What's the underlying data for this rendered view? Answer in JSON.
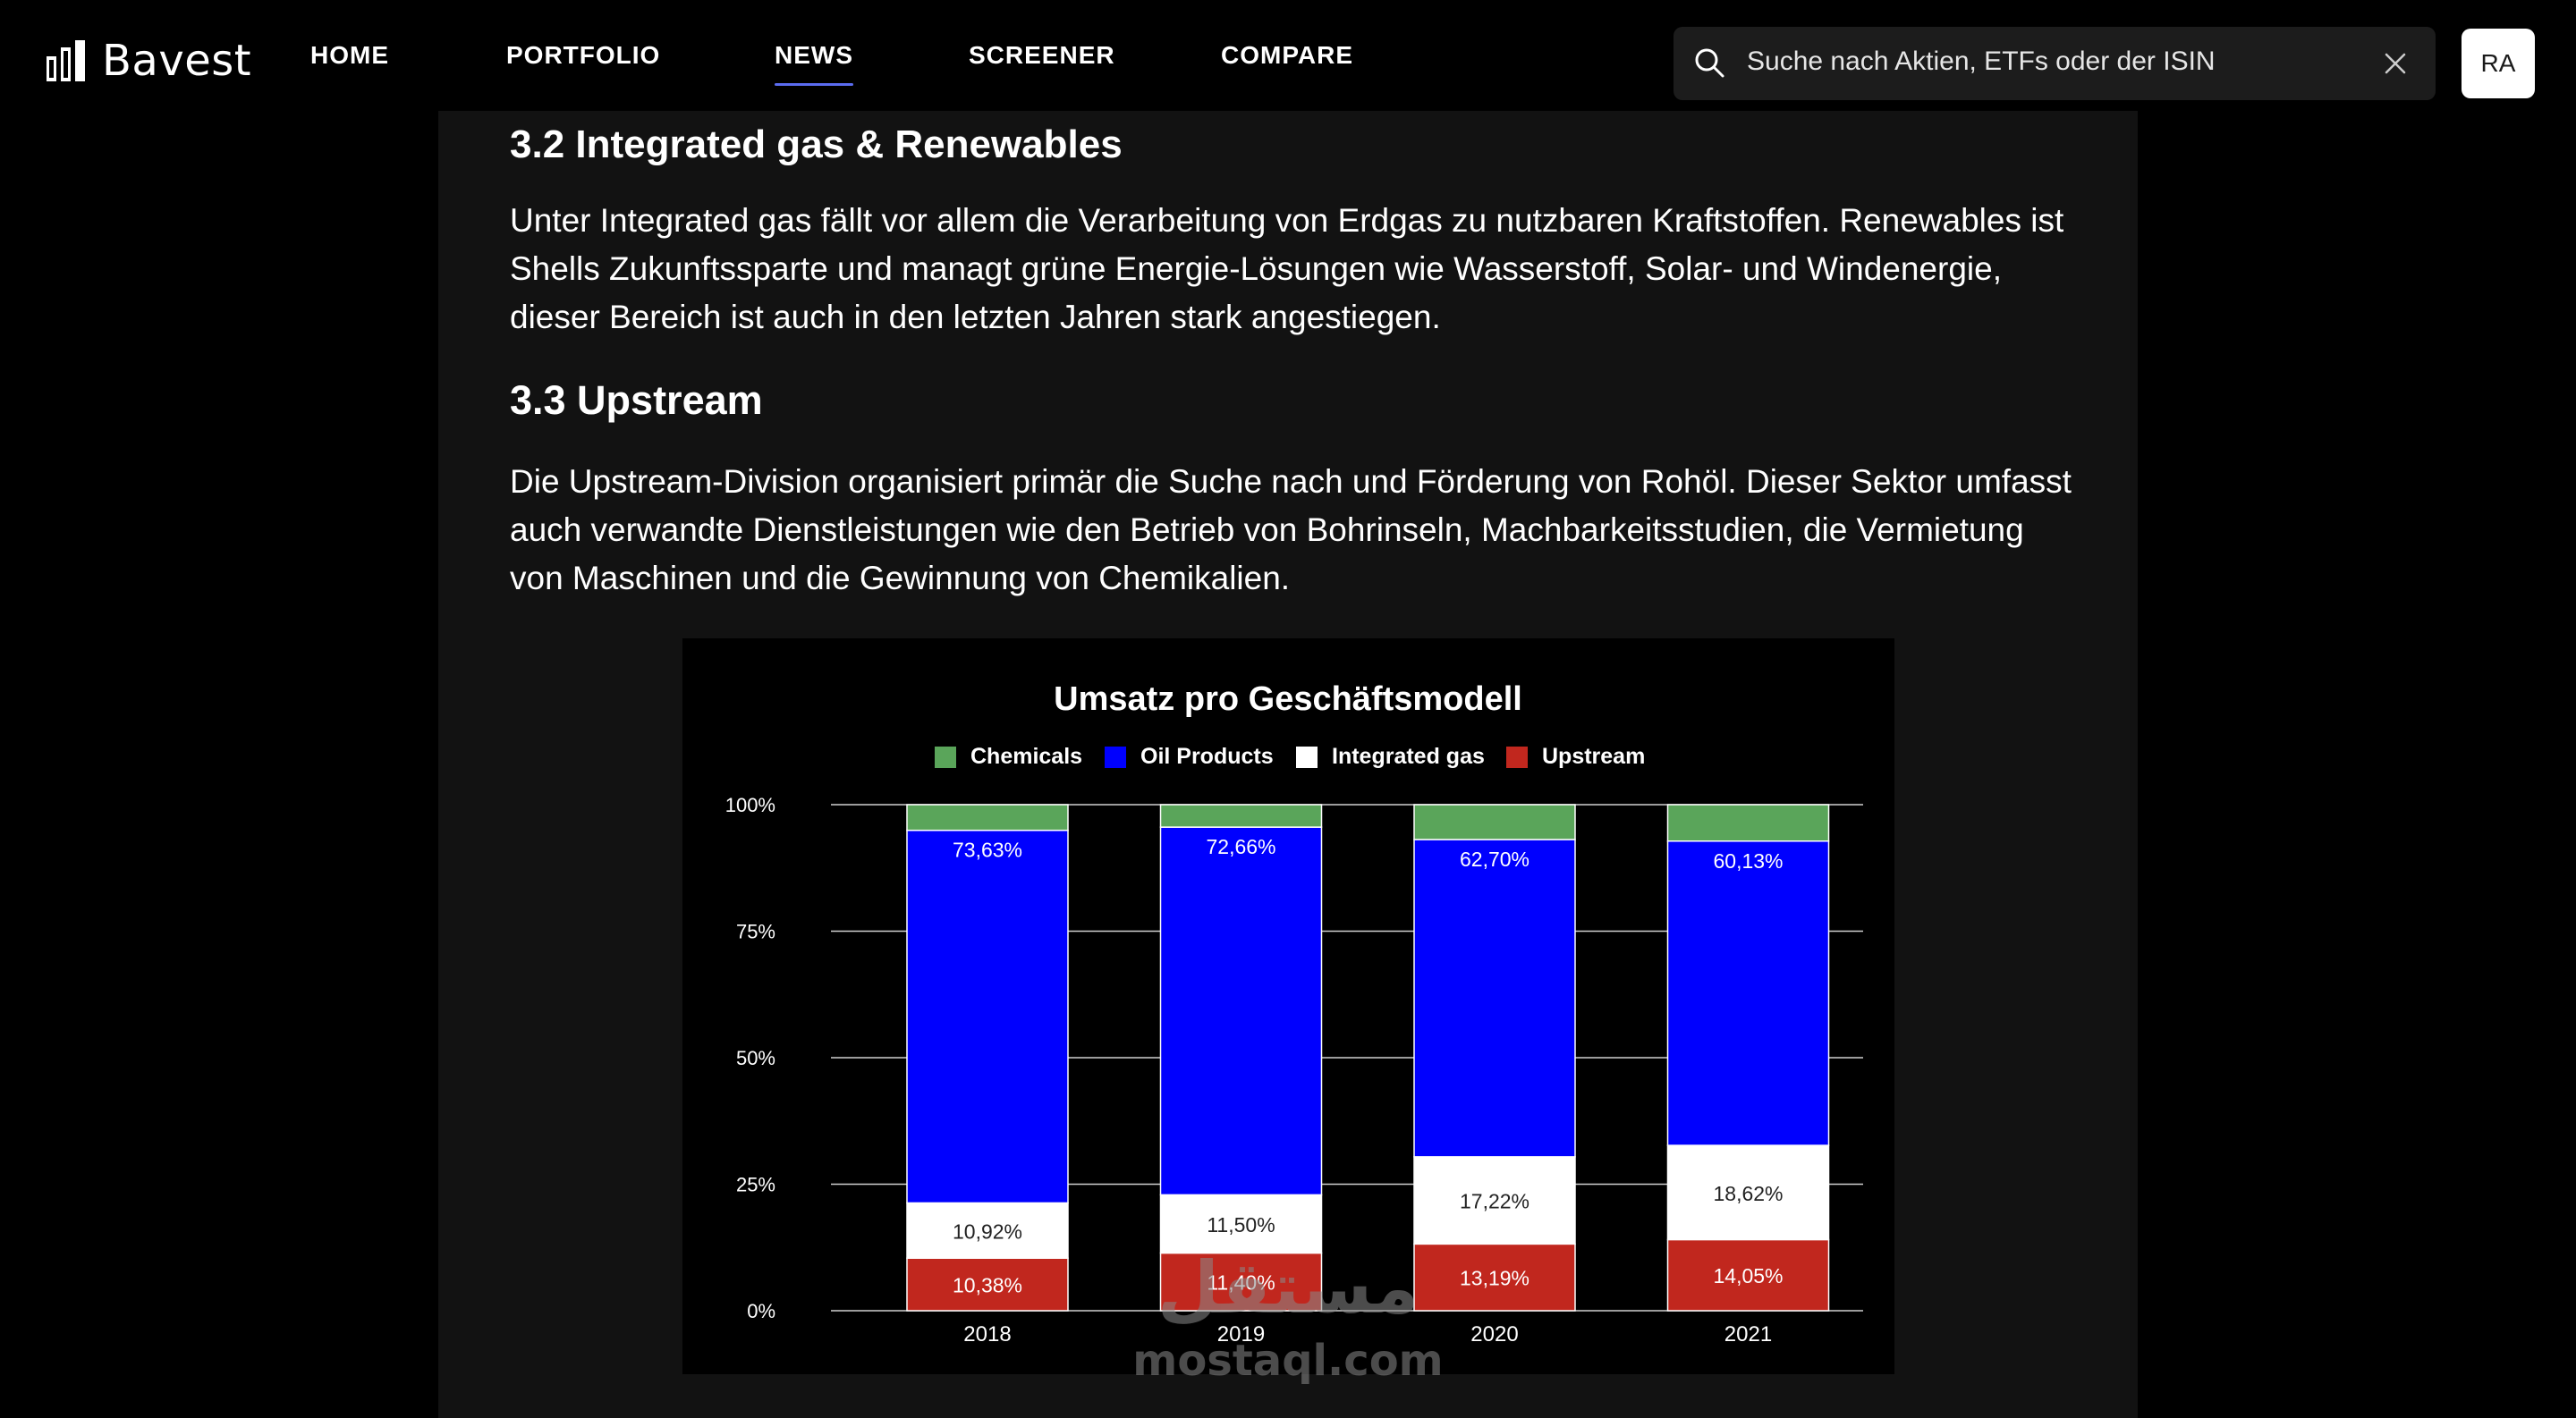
{
  "brand": {
    "name": "Bavest"
  },
  "nav": {
    "items": [
      {
        "label": "HOME"
      },
      {
        "label": "PORTFOLIO"
      },
      {
        "label": "NEWS",
        "active": true
      },
      {
        "label": "SCREENER"
      },
      {
        "label": "COMPARE"
      }
    ]
  },
  "search": {
    "placeholder": "Suche nach Aktien, ETFs oder der ISIN"
  },
  "user": {
    "initials": "RA"
  },
  "article": {
    "cut_heading": "3.2 Integrated gas & Renewables",
    "paragraph_1": "Unter Integrated gas fällt vor allem die Verarbeitung von Erdgas zu nutzbaren Kraftstoffen. Renewables ist Shells Zukunftssparte und managt grüne Energie-Lösungen wie Wasserstoff, Solar- und Windenergie, dieser Bereich ist auch in den letzten Jahren stark angestiegen.",
    "heading_3_3": "3.3 Upstream",
    "paragraph_2": "Die Upstream-Division organisiert primär die Suche nach und Förderung von Rohöl. Dieser Sektor umfasst auch verwandte Dienstleistungen wie den Betrieb von Bohrinseln, Machbarkeitsstudien, die Vermietung von Maschinen und die Gewinnung von Chemikalien."
  },
  "watermark": {
    "arabic": "مستقل",
    "latin": "mostaql.com"
  },
  "chart_data": {
    "type": "bar",
    "stacked": true,
    "title": "Umsatz pro Geschäftsmodell",
    "categories": [
      "2018",
      "2019",
      "2020",
      "2021"
    ],
    "legend_position": "top",
    "y_ticks": [
      "0%",
      "25%",
      "50%",
      "75%",
      "100%"
    ],
    "ylim": [
      0,
      100
    ],
    "grid": true,
    "series": [
      {
        "name": "Upstream",
        "color": "#c1271e",
        "values": [
          10.38,
          11.4,
          13.19,
          14.05
        ],
        "labels": [
          "10,38%",
          "11,40%",
          "13,19%",
          "14,05%"
        ],
        "label_color": "#ffffff"
      },
      {
        "name": "Integrated gas",
        "color": "#ffffff",
        "values": [
          10.92,
          11.5,
          17.22,
          18.62
        ],
        "labels": [
          "10,92%",
          "11,50%",
          "17,22%",
          "18,62%"
        ],
        "label_color": "#222222"
      },
      {
        "name": "Oil Products",
        "color": "#0000fe",
        "values": [
          73.63,
          72.66,
          62.7,
          60.13
        ],
        "labels": [
          "73,63%",
          "72,66%",
          "62,70%",
          "60,13%"
        ],
        "label_color": "#ffffff"
      },
      {
        "name": "Chemicals",
        "color": "#5aa55a",
        "values": [
          5.07,
          4.44,
          6.89,
          7.2
        ],
        "labels": [
          "",
          "",
          "",
          ""
        ],
        "label_color": "#ffffff"
      }
    ],
    "legend_order": [
      "Chemicals",
      "Oil Products",
      "Integrated gas",
      "Upstream"
    ]
  }
}
